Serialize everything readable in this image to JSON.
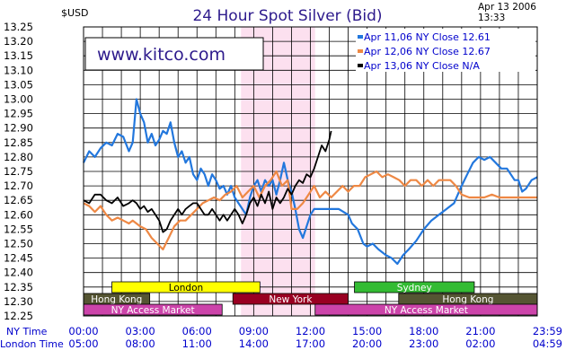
{
  "header": {
    "unit": "$USD",
    "title": "24 Hour Spot Silver (Bid)",
    "date": "Apr 13 2006",
    "time": "13:33"
  },
  "watermark": "www.kitco.com",
  "axis": {
    "ny_label": "NY Time",
    "london_label": "London Time",
    "ny_ticks": [
      "00:00",
      "03:00",
      "06:00",
      "09:00",
      "12:00",
      "15:00",
      "18:00",
      "21:00",
      "23:59"
    ],
    "london_ticks": [
      "05:00",
      "08:00",
      "11:00",
      "14:00",
      "17:00",
      "20:00",
      "23:00",
      "02:00",
      "04:59"
    ],
    "y_ticks": [
      "13.25",
      "13.20",
      "13.15",
      "13.10",
      "13.05",
      "13.00",
      "12.95",
      "12.90",
      "12.85",
      "12.80",
      "12.75",
      "12.70",
      "12.65",
      "12.60",
      "12.55",
      "12.50",
      "12.45",
      "12.40",
      "12.35",
      "12.30",
      "12.25"
    ]
  },
  "chart_data": {
    "type": "line",
    "title": "24 Hour Spot Silver (Bid)",
    "ylabel": "$USD",
    "xlabel": "NY Time / London Time",
    "xlim": [
      0,
      24
    ],
    "ylim": [
      12.25,
      13.25
    ],
    "grid": true,
    "legend_position": "top-right",
    "highlight_band": [
      8.33,
      12.25
    ],
    "series": [
      {
        "name": "Apr 11,06",
        "legend_text": "Apr  11,06  NY  Close  12.61",
        "color": "#2277dd",
        "points": [
          [
            0,
            12.78
          ],
          [
            0.3,
            12.82
          ],
          [
            0.6,
            12.8
          ],
          [
            0.9,
            12.83
          ],
          [
            1.2,
            12.85
          ],
          [
            1.5,
            12.84
          ],
          [
            1.8,
            12.88
          ],
          [
            2.1,
            12.87
          ],
          [
            2.4,
            12.82
          ],
          [
            2.6,
            12.85
          ],
          [
            2.8,
            13.0
          ],
          [
            3.0,
            12.95
          ],
          [
            3.2,
            12.92
          ],
          [
            3.4,
            12.85
          ],
          [
            3.6,
            12.88
          ],
          [
            3.8,
            12.84
          ],
          [
            4.0,
            12.86
          ],
          [
            4.2,
            12.89
          ],
          [
            4.4,
            12.88
          ],
          [
            4.6,
            12.92
          ],
          [
            4.8,
            12.85
          ],
          [
            5.0,
            12.8
          ],
          [
            5.2,
            12.82
          ],
          [
            5.4,
            12.78
          ],
          [
            5.6,
            12.8
          ],
          [
            5.8,
            12.74
          ],
          [
            6.0,
            12.72
          ],
          [
            6.2,
            12.76
          ],
          [
            6.4,
            12.74
          ],
          [
            6.6,
            12.7
          ],
          [
            6.8,
            12.74
          ],
          [
            7.0,
            12.72
          ],
          [
            7.2,
            12.69
          ],
          [
            7.4,
            12.7
          ],
          [
            7.6,
            12.67
          ],
          [
            7.8,
            12.7
          ],
          [
            8.0,
            12.66
          ],
          [
            8.2,
            12.64
          ],
          [
            8.4,
            12.62
          ],
          [
            8.6,
            12.6
          ],
          [
            8.8,
            12.66
          ],
          [
            9.0,
            12.7
          ],
          [
            9.2,
            12.72
          ],
          [
            9.4,
            12.68
          ],
          [
            9.6,
            12.72
          ],
          [
            9.8,
            12.7
          ],
          [
            10.0,
            12.72
          ],
          [
            10.2,
            12.67
          ],
          [
            10.4,
            12.72
          ],
          [
            10.6,
            12.78
          ],
          [
            10.8,
            12.72
          ],
          [
            11.0,
            12.68
          ],
          [
            11.2,
            12.62
          ],
          [
            11.4,
            12.55
          ],
          [
            11.6,
            12.52
          ],
          [
            11.8,
            12.56
          ],
          [
            12.0,
            12.6
          ],
          [
            12.2,
            12.62
          ],
          [
            12.5,
            12.62
          ],
          [
            13.0,
            12.62
          ],
          [
            13.5,
            12.62
          ],
          [
            14.0,
            12.6
          ],
          [
            14.2,
            12.57
          ],
          [
            14.5,
            12.55
          ],
          [
            14.8,
            12.5
          ],
          [
            15.0,
            12.49
          ],
          [
            15.3,
            12.5
          ],
          [
            15.6,
            12.48
          ],
          [
            16.0,
            12.46
          ],
          [
            16.3,
            12.45
          ],
          [
            16.6,
            12.43
          ],
          [
            16.9,
            12.46
          ],
          [
            17.2,
            12.48
          ],
          [
            17.6,
            12.51
          ],
          [
            18.0,
            12.55
          ],
          [
            18.4,
            12.58
          ],
          [
            18.8,
            12.6
          ],
          [
            19.2,
            12.62
          ],
          [
            19.6,
            12.64
          ],
          [
            20.0,
            12.7
          ],
          [
            20.3,
            12.74
          ],
          [
            20.6,
            12.78
          ],
          [
            20.9,
            12.8
          ],
          [
            21.2,
            12.79
          ],
          [
            21.5,
            12.8
          ],
          [
            21.8,
            12.78
          ],
          [
            22.1,
            12.76
          ],
          [
            22.4,
            12.76
          ],
          [
            22.6,
            12.74
          ],
          [
            22.8,
            12.72
          ],
          [
            23.0,
            12.72
          ],
          [
            23.2,
            12.68
          ],
          [
            23.4,
            12.69
          ],
          [
            23.7,
            12.72
          ],
          [
            24.0,
            12.73
          ]
        ]
      },
      {
        "name": "Apr 12,06",
        "legend_text": "Apr  12,06  NY  Close  12.67",
        "color": "#ee8844",
        "points": [
          [
            0,
            12.64
          ],
          [
            0.3,
            12.63
          ],
          [
            0.6,
            12.61
          ],
          [
            0.9,
            12.63
          ],
          [
            1.2,
            12.6
          ],
          [
            1.5,
            12.58
          ],
          [
            1.8,
            12.59
          ],
          [
            2.1,
            12.58
          ],
          [
            2.4,
            12.57
          ],
          [
            2.6,
            12.58
          ],
          [
            2.8,
            12.57
          ],
          [
            3.0,
            12.56
          ],
          [
            3.3,
            12.55
          ],
          [
            3.6,
            12.52
          ],
          [
            3.9,
            12.5
          ],
          [
            4.2,
            12.48
          ],
          [
            4.5,
            12.52
          ],
          [
            4.8,
            12.56
          ],
          [
            5.1,
            12.58
          ],
          [
            5.4,
            12.58
          ],
          [
            5.7,
            12.6
          ],
          [
            6.0,
            12.62
          ],
          [
            6.3,
            12.64
          ],
          [
            6.6,
            12.65
          ],
          [
            6.9,
            12.66
          ],
          [
            7.2,
            12.65
          ],
          [
            7.5,
            12.67
          ],
          [
            7.8,
            12.68
          ],
          [
            8.1,
            12.7
          ],
          [
            8.4,
            12.66
          ],
          [
            8.7,
            12.68
          ],
          [
            9.0,
            12.7
          ],
          [
            9.3,
            12.66
          ],
          [
            9.6,
            12.7
          ],
          [
            9.9,
            12.72
          ],
          [
            10.2,
            12.75
          ],
          [
            10.5,
            12.7
          ],
          [
            10.8,
            12.72
          ],
          [
            11.0,
            12.62
          ],
          [
            11.3,
            12.62
          ],
          [
            11.6,
            12.64
          ],
          [
            11.9,
            12.67
          ],
          [
            12.2,
            12.7
          ],
          [
            12.5,
            12.66
          ],
          [
            12.8,
            12.68
          ],
          [
            13.1,
            12.66
          ],
          [
            13.4,
            12.68
          ],
          [
            13.7,
            12.7
          ],
          [
            14.0,
            12.68
          ],
          [
            14.3,
            12.7
          ],
          [
            14.6,
            12.7
          ],
          [
            14.9,
            12.73
          ],
          [
            15.2,
            12.74
          ],
          [
            15.5,
            12.75
          ],
          [
            15.8,
            12.73
          ],
          [
            16.1,
            12.74
          ],
          [
            16.4,
            12.73
          ],
          [
            16.7,
            12.72
          ],
          [
            17.0,
            12.7
          ],
          [
            17.3,
            12.72
          ],
          [
            17.6,
            12.72
          ],
          [
            17.9,
            12.7
          ],
          [
            18.2,
            12.72
          ],
          [
            18.5,
            12.7
          ],
          [
            18.8,
            12.72
          ],
          [
            19.1,
            12.72
          ],
          [
            19.4,
            12.72
          ],
          [
            19.7,
            12.7
          ],
          [
            20.0,
            12.67
          ],
          [
            20.4,
            12.66
          ],
          [
            20.8,
            12.66
          ],
          [
            21.2,
            12.66
          ],
          [
            21.6,
            12.67
          ],
          [
            22.0,
            12.66
          ],
          [
            22.4,
            12.66
          ],
          [
            22.8,
            12.66
          ],
          [
            23.2,
            12.66
          ],
          [
            23.6,
            12.66
          ],
          [
            24.0,
            12.66
          ]
        ]
      },
      {
        "name": "Apr 13,06",
        "legend_text": "Apr  13,06  NY  Close  N/A",
        "color": "#000000",
        "points": [
          [
            0,
            12.65
          ],
          [
            0.3,
            12.64
          ],
          [
            0.6,
            12.67
          ],
          [
            0.9,
            12.67
          ],
          [
            1.2,
            12.65
          ],
          [
            1.5,
            12.64
          ],
          [
            1.8,
            12.66
          ],
          [
            2.1,
            12.63
          ],
          [
            2.4,
            12.64
          ],
          [
            2.6,
            12.65
          ],
          [
            2.8,
            12.64
          ],
          [
            3.0,
            12.62
          ],
          [
            3.2,
            12.63
          ],
          [
            3.4,
            12.61
          ],
          [
            3.6,
            12.62
          ],
          [
            3.8,
            12.6
          ],
          [
            4.0,
            12.58
          ],
          [
            4.2,
            12.54
          ],
          [
            4.4,
            12.55
          ],
          [
            4.6,
            12.58
          ],
          [
            4.8,
            12.6
          ],
          [
            5.0,
            12.62
          ],
          [
            5.2,
            12.6
          ],
          [
            5.4,
            12.62
          ],
          [
            5.6,
            12.63
          ],
          [
            5.8,
            12.64
          ],
          [
            6.0,
            12.64
          ],
          [
            6.2,
            12.62
          ],
          [
            6.4,
            12.6
          ],
          [
            6.6,
            12.6
          ],
          [
            6.8,
            12.62
          ],
          [
            7.0,
            12.6
          ],
          [
            7.2,
            12.58
          ],
          [
            7.4,
            12.6
          ],
          [
            7.6,
            12.58
          ],
          [
            7.8,
            12.6
          ],
          [
            8.0,
            12.62
          ],
          [
            8.2,
            12.6
          ],
          [
            8.4,
            12.57
          ],
          [
            8.6,
            12.6
          ],
          [
            8.8,
            12.64
          ],
          [
            9.0,
            12.66
          ],
          [
            9.2,
            12.63
          ],
          [
            9.4,
            12.67
          ],
          [
            9.6,
            12.64
          ],
          [
            9.8,
            12.68
          ],
          [
            10.0,
            12.62
          ],
          [
            10.2,
            12.66
          ],
          [
            10.4,
            12.64
          ],
          [
            10.6,
            12.66
          ],
          [
            10.8,
            12.69
          ],
          [
            11.0,
            12.67
          ],
          [
            11.2,
            12.7
          ],
          [
            11.4,
            12.72
          ],
          [
            11.6,
            12.71
          ],
          [
            11.8,
            12.74
          ],
          [
            12.0,
            12.73
          ],
          [
            12.2,
            12.76
          ],
          [
            12.4,
            12.8
          ],
          [
            12.6,
            12.84
          ],
          [
            12.8,
            12.82
          ],
          [
            13.0,
            12.86
          ],
          [
            13.1,
            12.89
          ]
        ]
      }
    ]
  },
  "sessions": [
    {
      "name": "London",
      "bg": "#ffff00",
      "fg": "#000000",
      "row": 0
    },
    {
      "name": "Sydney",
      "bg": "#33bb33",
      "fg": "#ffffff",
      "row": 0
    },
    {
      "name": "Hong  Kong",
      "bg": "#555533",
      "fg": "#ffffff",
      "row": 1
    },
    {
      "name": "New  York",
      "bg": "#990022",
      "fg": "#ffffff",
      "row": 1
    },
    {
      "name": "Hong  Kong",
      "bg": "#555533",
      "fg": "#ffffff",
      "row": 1
    },
    {
      "name": "NY  Access  Market",
      "bg": "#cc44aa",
      "fg": "#ffffff",
      "row": 2
    },
    {
      "name": "NY  Access  Market",
      "bg": "#cc44aa",
      "fg": "#ffffff",
      "row": 2
    }
  ]
}
